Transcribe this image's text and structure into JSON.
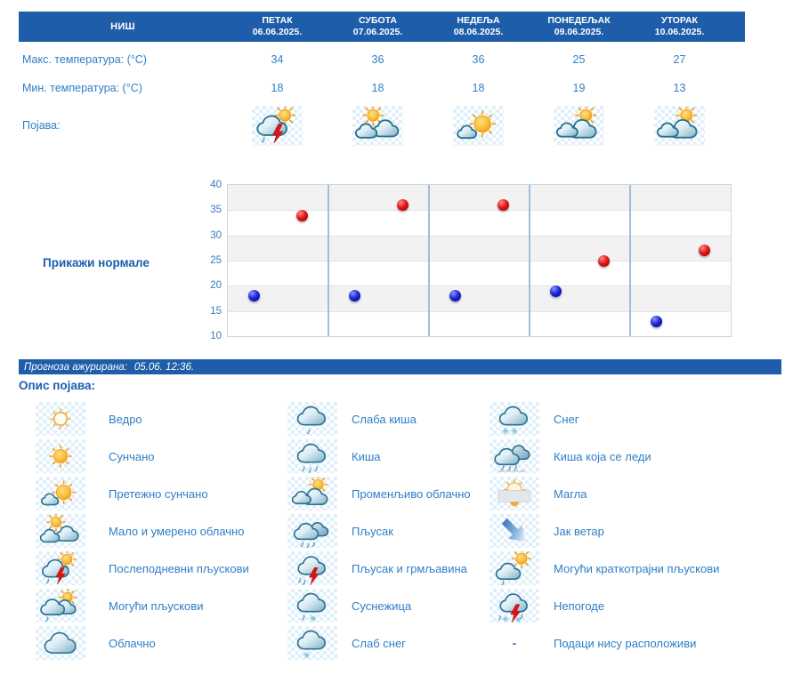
{
  "colors": {
    "header_bar": "#1d5da9",
    "text_blue": "#2e7ec6",
    "heading_blue": "#1b5fad",
    "max_dot_red": "#e01414",
    "min_dot_blue": "#1a22d6",
    "lightning_red": "#e01313",
    "day_separator": "#9fbedd"
  },
  "forecast_table": {
    "city": "НИШ",
    "days": [
      {
        "name": "ПЕТАК",
        "date": "06.06.2025."
      },
      {
        "name": "СУБОТА",
        "date": "07.06.2025."
      },
      {
        "name": "НЕДЕЉА",
        "date": "08.06.2025."
      },
      {
        "name": "ПОНЕДЕЉАК",
        "date": "09.06.2025."
      },
      {
        "name": "УТОРАК",
        "date": "10.06.2025."
      }
    ],
    "max_temp_label": "Макс. температура: (°C)",
    "max_temps": [
      34,
      36,
      36,
      25,
      27
    ],
    "min_temp_label": "Мин. температура: (°C)",
    "min_temps": [
      18,
      18,
      18,
      19,
      13
    ],
    "phenomenon_label": "Појава:",
    "phenomenon_icons": [
      "afternoon-showers",
      "partly-cloudy",
      "mostly-sunny",
      "variable-cloudy",
      "variable-cloudy"
    ]
  },
  "normals_link_label": "Прикажи нормале",
  "chart_data": {
    "type": "scatter",
    "categories": [
      "06.06.2025.",
      "07.06.2025.",
      "08.06.2025.",
      "09.06.2025.",
      "10.06.2025."
    ],
    "series": [
      {
        "name": "Макс. температура (°C)",
        "color": "#e01414",
        "values": [
          34,
          36,
          36,
          25,
          27
        ]
      },
      {
        "name": "Мин. температура (°C)",
        "color": "#1a22d6",
        "values": [
          18,
          18,
          18,
          19,
          13
        ]
      }
    ],
    "ylim": [
      10,
      40
    ],
    "yticks": [
      10,
      15,
      20,
      25,
      30,
      35,
      40
    ],
    "grid": "alternating gray/white horizontal bands every 5°C, light blue vertical separators between days",
    "legend_position": "none",
    "title": ""
  },
  "status_bar": {
    "label": "Прогноза ажурирана:",
    "value": "05.06. 12:36."
  },
  "legend": {
    "title": "Опис појава:",
    "columns": [
      [
        {
          "icon": "clear",
          "label": "Ведро"
        },
        {
          "icon": "sunny",
          "label": "Сунчано"
        },
        {
          "icon": "mostly-sunny",
          "label": "Претежно сунчано"
        },
        {
          "icon": "partly-cloudy",
          "label": "Мало и умерено облачно"
        },
        {
          "icon": "afternoon-showers",
          "label": "Послеподневни пљускови"
        },
        {
          "icon": "possible-showers",
          "label": "Могући пљускови"
        },
        {
          "icon": "cloudy",
          "label": "Облачно"
        }
      ],
      [
        {
          "icon": "light-rain",
          "label": "Слаба киша"
        },
        {
          "icon": "rain",
          "label": "Киша"
        },
        {
          "icon": "variable-cloudy",
          "label": "Променљиво облачно"
        },
        {
          "icon": "shower",
          "label": "Пљусак"
        },
        {
          "icon": "thunder-shower",
          "label": "Пљусак и грмљавина"
        },
        {
          "icon": "sleet",
          "label": "Суснежица"
        },
        {
          "icon": "light-snow",
          "label": "Слаб снег"
        }
      ],
      [
        {
          "icon": "snow",
          "label": "Снег"
        },
        {
          "icon": "freezing-rain",
          "label": "Киша која се леди"
        },
        {
          "icon": "fog",
          "label": "Магла"
        },
        {
          "icon": "strong-wind",
          "label": "Јак ветар"
        },
        {
          "icon": "brief-showers",
          "label": "Могући краткотрајни пљускови"
        },
        {
          "icon": "storm",
          "label": "Непогоде"
        },
        {
          "icon": "none",
          "label": "Подаци нису расположиви",
          "dash": "-"
        }
      ]
    ]
  }
}
